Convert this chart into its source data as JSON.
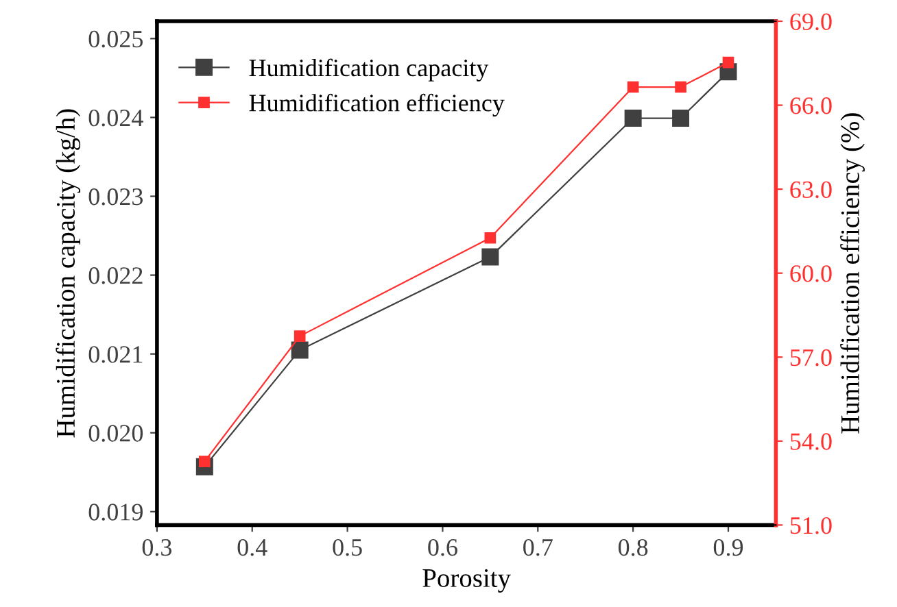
{
  "chart_data": {
    "type": "line",
    "xlabel": "Porosity",
    "ylabel": "Humidification capacity (kg/h)",
    "y2label": "Humidification efficiency (%)",
    "x": [
      0.35,
      0.45,
      0.65,
      0.8,
      0.85,
      0.9
    ],
    "series": [
      {
        "name": "Humidification capacity",
        "color": "#404040",
        "values": [
          0.01957,
          0.02105,
          0.02223,
          0.02399,
          0.02399,
          0.02458
        ]
      },
      {
        "name": "Humidification efficiency",
        "color": "#ff3030",
        "axis": "y2",
        "values": [
          53.27,
          57.75,
          61.26,
          66.65,
          66.65,
          67.53
        ]
      }
    ],
    "xlim": [
      0.3,
      0.95
    ],
    "xticks": [
      0.3,
      0.4,
      0.5,
      0.6,
      0.7,
      0.8,
      0.9
    ],
    "ylim": [
      0.01883,
      0.02522
    ],
    "yticks": [
      0.019,
      {
        "value": 0.02,
        "label": "0.020"
      },
      0.021,
      0.022,
      0.023,
      0.024,
      0.025
    ],
    "y2lim": [
      51,
      69
    ],
    "y2ticks": [
      {
        "value": 51,
        "label": "51.0"
      },
      {
        "value": 54,
        "label": "54.0"
      },
      {
        "value": 57,
        "label": "57.0"
      },
      {
        "value": 60,
        "label": "60.0"
      },
      {
        "value": 63,
        "label": "63.0"
      },
      {
        "value": 66,
        "label": "66.0"
      },
      {
        "value": 69,
        "label": "69.0"
      }
    ],
    "legend": "top left",
    "marker": "square",
    "line_style": "solid",
    "grid": false
  }
}
